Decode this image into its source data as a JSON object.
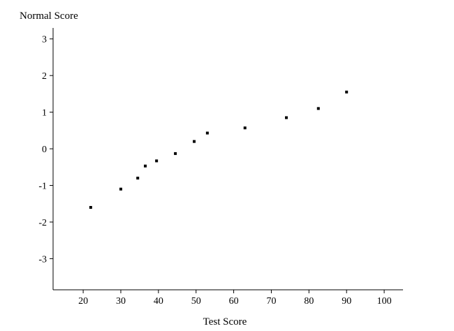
{
  "chart_data": {
    "type": "scatter",
    "xlabel": "Test Score",
    "ylabel": "Normal Score",
    "xlim": [
      12,
      105
    ],
    "ylim": [
      -3.85,
      3.3
    ],
    "xticks": [
      20,
      30,
      40,
      50,
      60,
      70,
      80,
      90,
      100
    ],
    "yticks": [
      3,
      2,
      1,
      0,
      -1,
      -2,
      -3
    ],
    "grid": false,
    "marker_color": "#000000",
    "series": [
      {
        "points": [
          {
            "x": 22,
            "y": -1.6
          },
          {
            "x": 30,
            "y": -1.1
          },
          {
            "x": 34.5,
            "y": -0.8
          },
          {
            "x": 36.5,
            "y": -0.47
          },
          {
            "x": 39.5,
            "y": -0.33
          },
          {
            "x": 44.5,
            "y": -0.13
          },
          {
            "x": 49.5,
            "y": 0.2
          },
          {
            "x": 53,
            "y": 0.43
          },
          {
            "x": 63,
            "y": 0.57
          },
          {
            "x": 74,
            "y": 0.85
          },
          {
            "x": 82.5,
            "y": 1.1
          },
          {
            "x": 90,
            "y": 1.55
          }
        ]
      }
    ]
  }
}
